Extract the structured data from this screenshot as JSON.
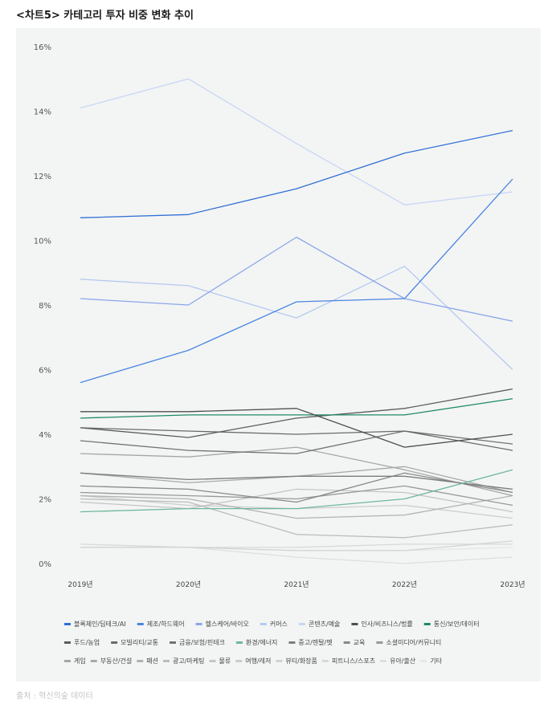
{
  "header": {
    "title": "<차트5>  카테고리 투자 비중 변화 추이"
  },
  "footer": {
    "source": "출처 : 혁신의숲 데이터"
  },
  "chart_data": {
    "type": "line",
    "title": "<차트5>  카테고리 투자 비중 변화 추이",
    "xlabel": "",
    "ylabel": "",
    "categories": [
      "2019년",
      "2020년",
      "2021년",
      "2022년",
      "2023년"
    ],
    "ylim": [
      0,
      16
    ],
    "yticks": [
      0,
      2,
      4,
      6,
      8,
      10,
      12,
      14,
      16
    ],
    "ytick_labels": [
      "0%",
      "2%",
      "4%",
      "6%",
      "8%",
      "10%",
      "12%",
      "14%",
      "16%"
    ],
    "grid": false,
    "legend_position": "bottom",
    "series": [
      {
        "name": "블록체인/딥테크/AI",
        "color": "#2f6fd6",
        "values": [
          10.7,
          10.8,
          11.6,
          12.7,
          13.4
        ]
      },
      {
        "name": "제조/하드웨어",
        "color": "#4a84e4",
        "values": [
          5.6,
          6.6,
          8.1,
          8.2,
          11.9
        ]
      },
      {
        "name": "헬스케어/바이오",
        "color": "#8aa6ea",
        "values": [
          8.2,
          8.0,
          10.1,
          8.2,
          7.5
        ]
      },
      {
        "name": "커머스",
        "color": "#b6c8f2",
        "values": [
          8.8,
          8.6,
          7.6,
          9.2,
          6.0
        ]
      },
      {
        "name": "콘텐츠/예술",
        "color": "#c8d6f6",
        "values": [
          14.1,
          15.0,
          13.0,
          11.1,
          11.5
        ]
      },
      {
        "name": "인사/비즈니스/법률",
        "color": "#4e4e4e",
        "values": [
          4.7,
          4.7,
          4.8,
          3.6,
          4.0
        ]
      },
      {
        "name": "통신/보안/데이터",
        "color": "#1f8a62",
        "values": [
          4.5,
          4.6,
          4.6,
          4.6,
          5.1
        ]
      },
      {
        "name": "푸드/농업",
        "color": "#5c5c5c",
        "values": [
          4.2,
          3.9,
          4.5,
          4.8,
          5.4
        ]
      },
      {
        "name": "모빌리티/교통",
        "color": "#6a6a6a",
        "values": [
          4.2,
          4.1,
          4.0,
          4.1,
          3.5
        ]
      },
      {
        "name": "금융/보험/핀테크",
        "color": "#727272",
        "values": [
          3.8,
          3.5,
          3.4,
          4.1,
          3.7
        ]
      },
      {
        "name": "환경/에너지",
        "color": "#6fb89a",
        "values": [
          1.6,
          1.7,
          1.7,
          2.0,
          2.9
        ]
      },
      {
        "name": "중고/렌탈/펫",
        "color": "#7c7c7c",
        "values": [
          2.8,
          2.6,
          2.7,
          2.7,
          2.3
        ]
      },
      {
        "name": "교육",
        "color": "#888888",
        "values": [
          2.4,
          2.3,
          1.9,
          2.8,
          2.2
        ]
      },
      {
        "name": "소셜미디어/커뮤니티",
        "color": "#989898",
        "values": [
          2.2,
          2.1,
          2.0,
          2.4,
          1.8
        ]
      },
      {
        "name": "게임",
        "color": "#a6a6a6",
        "values": [
          3.4,
          3.3,
          3.6,
          2.9,
          2.1
        ]
      },
      {
        "name": "부동산/건설",
        "color": "#a8a8a8",
        "values": [
          2.8,
          2.5,
          2.7,
          3.0,
          2.2
        ]
      },
      {
        "name": "패션",
        "color": "#b2b2b2",
        "values": [
          2.1,
          2.0,
          1.4,
          1.5,
          2.1
        ]
      },
      {
        "name": "광고/마케팅",
        "color": "#bcbcbc",
        "values": [
          2.0,
          1.9,
          0.9,
          0.8,
          1.2
        ]
      },
      {
        "name": "물류",
        "color": "#c4c4c4",
        "values": [
          1.9,
          1.7,
          2.3,
          2.2,
          1.6
        ]
      },
      {
        "name": "여행/레저",
        "color": "#cccccc",
        "values": [
          2.1,
          1.8,
          1.7,
          1.8,
          1.4
        ]
      },
      {
        "name": "뷰티/화장품",
        "color": "#d2d2d2",
        "values": [
          0.5,
          0.5,
          0.4,
          0.4,
          0.7
        ]
      },
      {
        "name": "피트니스/스포츠",
        "color": "#d8d8d8",
        "values": [
          0.6,
          0.5,
          0.5,
          0.6,
          0.6
        ]
      },
      {
        "name": "유아/출산",
        "color": "#dedede",
        "values": [
          0.5,
          0.5,
          0.2,
          0.0,
          0.2
        ]
      },
      {
        "name": "기타",
        "color": "#e6e6e6",
        "values": [
          0.5,
          0.5,
          0.4,
          0.4,
          0.5
        ]
      }
    ]
  }
}
